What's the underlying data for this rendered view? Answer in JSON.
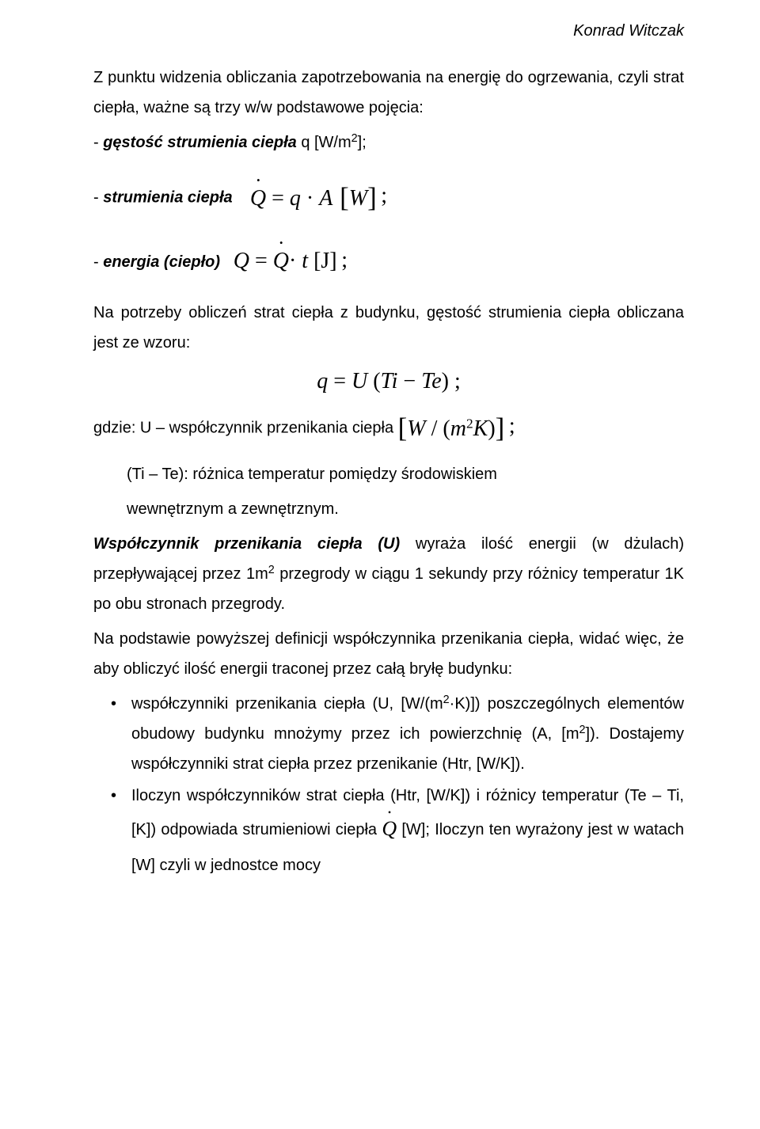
{
  "author": "Konrad Witczak",
  "p1": "Z punktu widzenia obliczania zapotrzebowania na energię do ogrzewania, czyli strat ciepła, ważne są trzy w/w podstawowe pojęcia:",
  "bullet1_pre": "- ",
  "bullet1_bold": "gęstość strumienia ciepła",
  "bullet1_rest": " q [W/m",
  "bullet1_rest2": "];",
  "bullet2_pre": "- ",
  "bullet2_bold": "strumienia ciepła",
  "eq1_Qdot": "Q",
  "eq1_eq": " = ",
  "eq1_q": "q",
  "eq1_dot": " · ",
  "eq1_A": "A",
  "eq1_lb": " [",
  "eq1_W": "W",
  "eq1_rb": "]",
  "bullet3_pre": "- ",
  "bullet3_bold": "energia (ciepło)",
  "eq2_Q": "Q",
  "eq2_eq": " = ",
  "eq2_Qdot": "Q",
  "eq2_t": " t ",
  "eq2_br": "[J]",
  "p2": "Na potrzeby obliczeń strat ciepła z budynku, gęstość strumienia ciepła obliczana jest ze wzoru:",
  "eq3_q": "q",
  "eq3_eq": " = ",
  "eq3_U": "U",
  "eq3_open": " (",
  "eq3_Ti": "Ti",
  "eq3_minus": " − ",
  "eq3_Te": "Te",
  "eq3_close": ")",
  "p3_pre": "gdzie: U – współczynnik przenikania ciepła ",
  "eq4_lb": "[",
  "eq4_W": "W",
  "eq4_slash": " / (",
  "eq4_m": "m",
  "eq4_K": "K",
  "eq4_close": ")",
  "eq4_rb": "]",
  "p4a": "(Ti – Te): różnica temperatur pomiędzy środowiskiem",
  "p4b": "wewnętrznym a zewnętrznym.",
  "p5_bold": "Współczynnik przenikania ciepła (U)",
  "p5_rest": " wyraża ilość energii (w dżulach) przepływającej przez 1m",
  "p5_rest2": " przegrody w ciągu 1 sekundy przy różnicy temperatur 1K po obu stronach przegrody.",
  "p6": "Na podstawie powyższej definicji współczynnika przenikania ciepła, widać więc, że aby obliczyć ilość energii traconej przez całą bryłę budynku:",
  "li1a": "współczynniki przenikania ciepła (U, [W/(m",
  "li1b": "·K)]) poszczególnych elementów obudowy budynku mnożymy przez ich powierzchnię (A, [m",
  "li1c": "]). Dostajemy współczynniki strat ciepła przez przenikanie (Htr, [W/K]).",
  "li2a": "Iloczyn współczynników strat ciepła (Htr, [W/K]) i różnicy temperatur (Te – Ti, [K]) odpowiada strumieniowi ciepła ",
  "li2_Q": "Q",
  "li2b": " [W]; Iloczyn ten wyrażony jest w watach [W] czyli w jednostce mocy",
  "semicolon": " ;",
  "two": "2"
}
